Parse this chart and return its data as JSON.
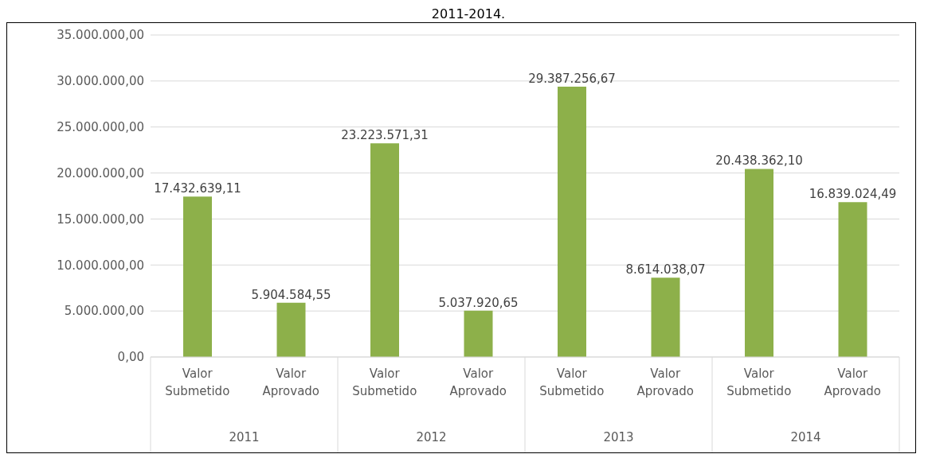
{
  "chart_data": {
    "type": "bar",
    "title": "2011-2014.",
    "categories": [
      "Valor Submetido",
      "Valor Aprovado",
      "Valor Submetido",
      "Valor Aprovado",
      "Valor Submetido",
      "Valor Aprovado",
      "Valor Submetido",
      "Valor Aprovado"
    ],
    "values": [
      17432639.11,
      5904584.55,
      23223571.31,
      5037920.65,
      29387256.67,
      8614038.07,
      20438362.1,
      16839024.49
    ],
    "value_labels": [
      "17.432.639,11",
      "5.904.584,55",
      "23.223.571,31",
      "5.037.920,65",
      "29.387.256,67",
      "8.614.038,07",
      "20.438.362,10",
      "16.839.024,49"
    ],
    "color": "#8db04a",
    "ylim": [
      0,
      35000000
    ],
    "yticks": [
      {
        "value": 0,
        "label": "0,00"
      },
      {
        "value": 5000000,
        "label": "5.000.000,00"
      },
      {
        "value": 10000000,
        "label": "10.000.000,00"
      },
      {
        "value": 15000000,
        "label": "15.000.000,00"
      },
      {
        "value": 20000000,
        "label": "20.000.000,00"
      },
      {
        "value": 25000000,
        "label": "25.000.000,00"
      },
      {
        "value": 30000000,
        "label": "30.000.000,00"
      },
      {
        "value": 35000000,
        "label": "35.000.000,00"
      }
    ],
    "annotations": [
      "2011",
      "2012",
      "2013",
      "2014"
    ],
    "grid": "y"
  }
}
